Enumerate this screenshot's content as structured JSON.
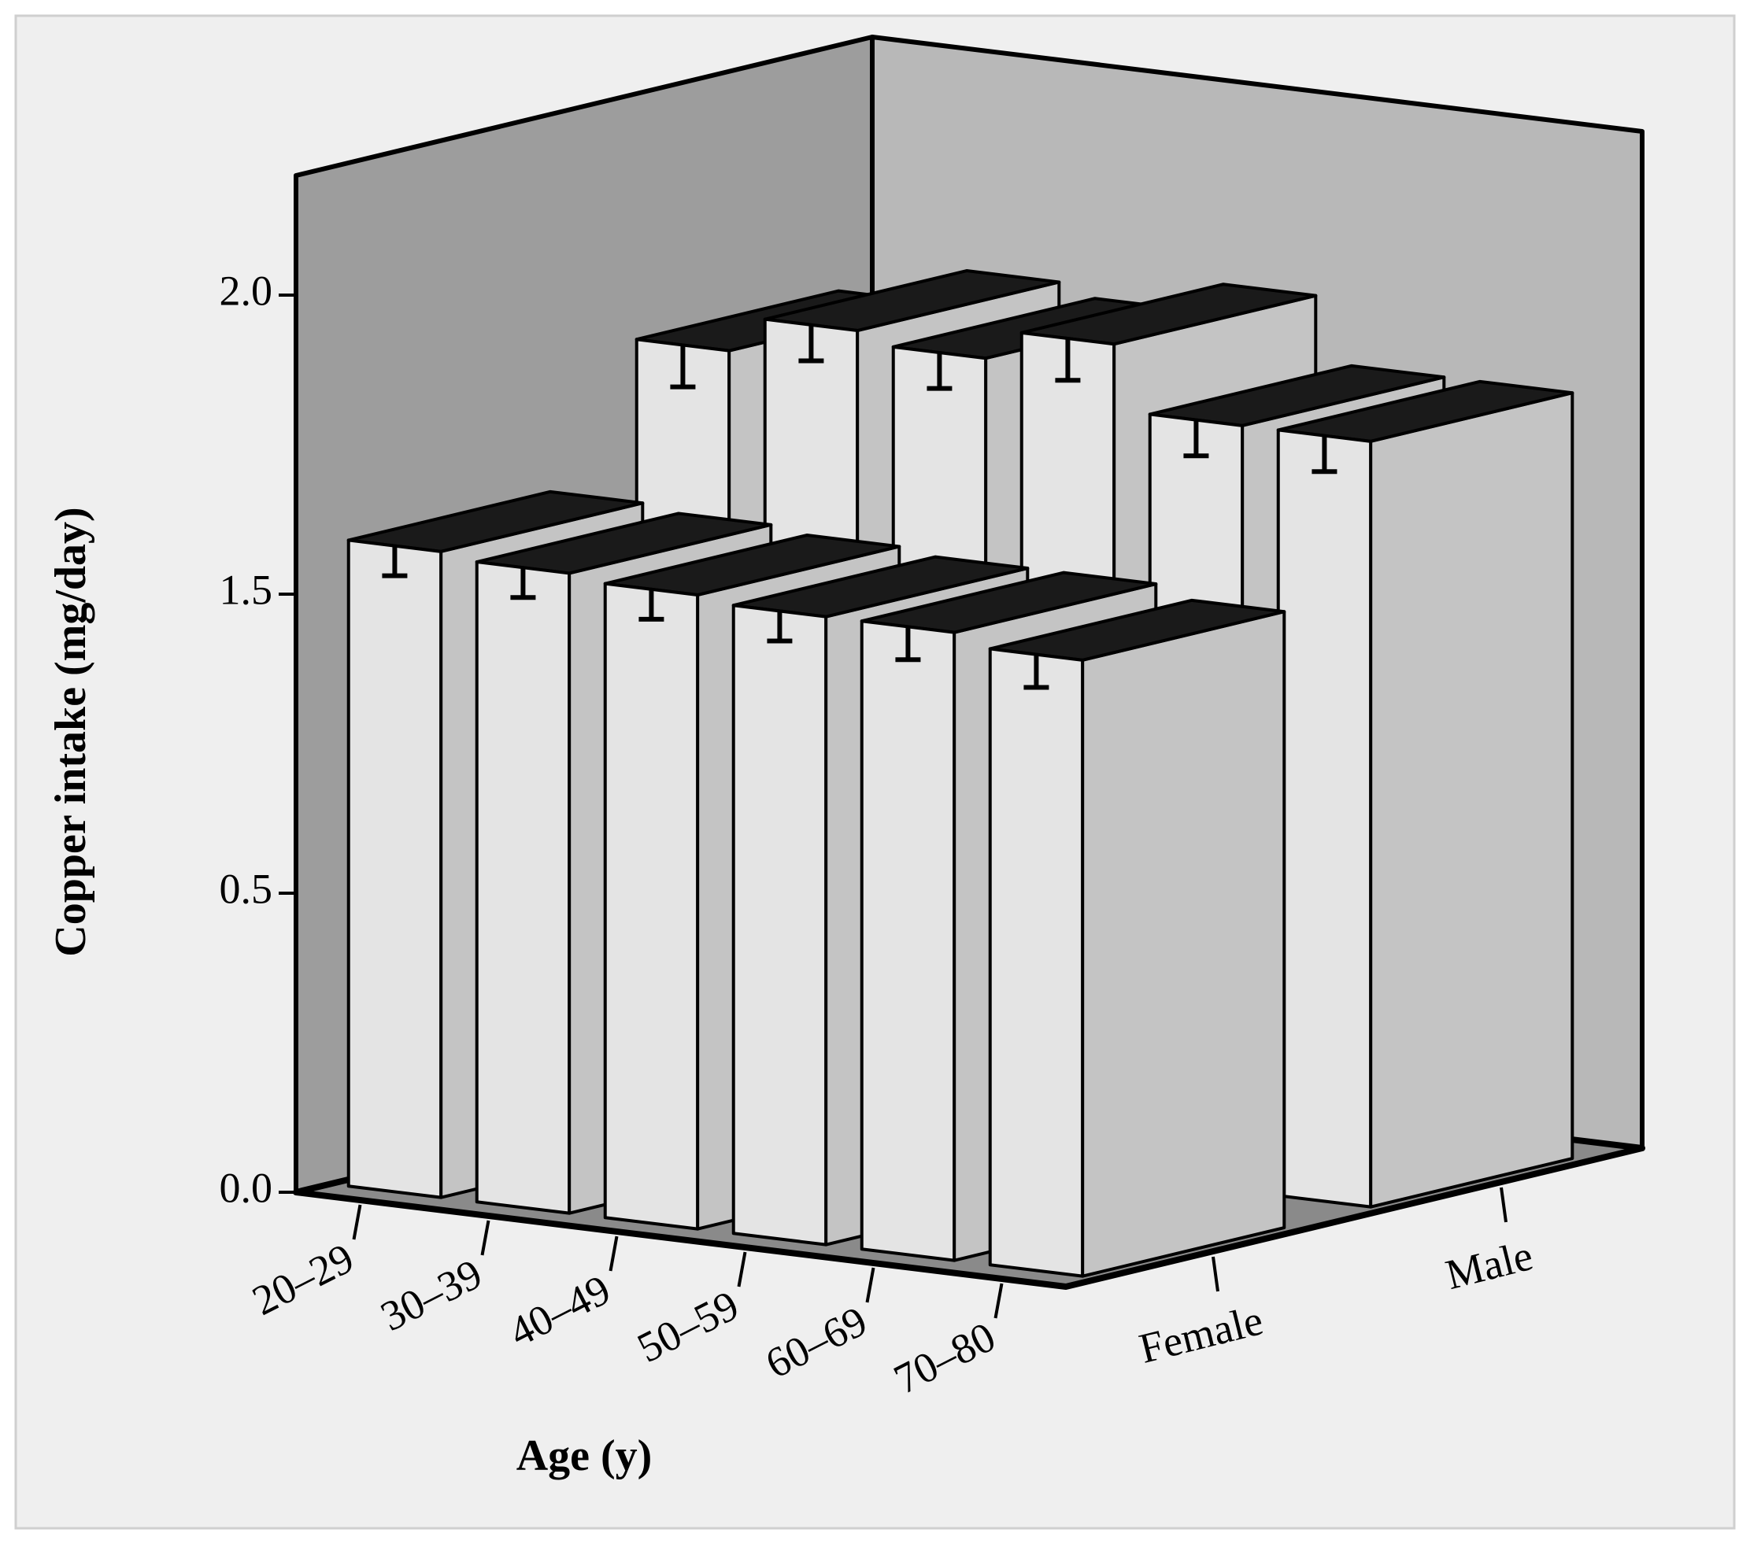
{
  "chart_data": {
    "type": "bar3d",
    "y_label": "Copper intake (mg/day)",
    "x_label": "Age (y)",
    "categories": [
      "20–29",
      "30–39",
      "40–49",
      "50–59",
      "60–69",
      "70–80"
    ],
    "series": [
      {
        "name": "Female",
        "color": "#e4e4e4",
        "values": [
          1.58,
          1.57,
          1.56,
          1.55,
          1.55,
          1.53
        ],
        "errors": [
          0.05,
          0.05,
          0.05,
          0.05,
          0.06,
          0.08
        ]
      },
      {
        "name": "Male",
        "color": "#e4e4e4",
        "values": [
          1.8,
          1.86,
          1.84,
          1.89,
          1.78,
          1.78
        ],
        "errors": [
          0.07,
          0.06,
          0.06,
          0.07,
          0.06,
          0.06
        ]
      }
    ],
    "ylim": [
      0,
      2.2
    ],
    "yticks": [
      {
        "value": 0,
        "label": "0.0"
      },
      {
        "value": 0.5,
        "label": "0.5"
      },
      {
        "value": 1.5,
        "label": "1.5"
      },
      {
        "value": 2,
        "label": "2.0"
      }
    ]
  }
}
